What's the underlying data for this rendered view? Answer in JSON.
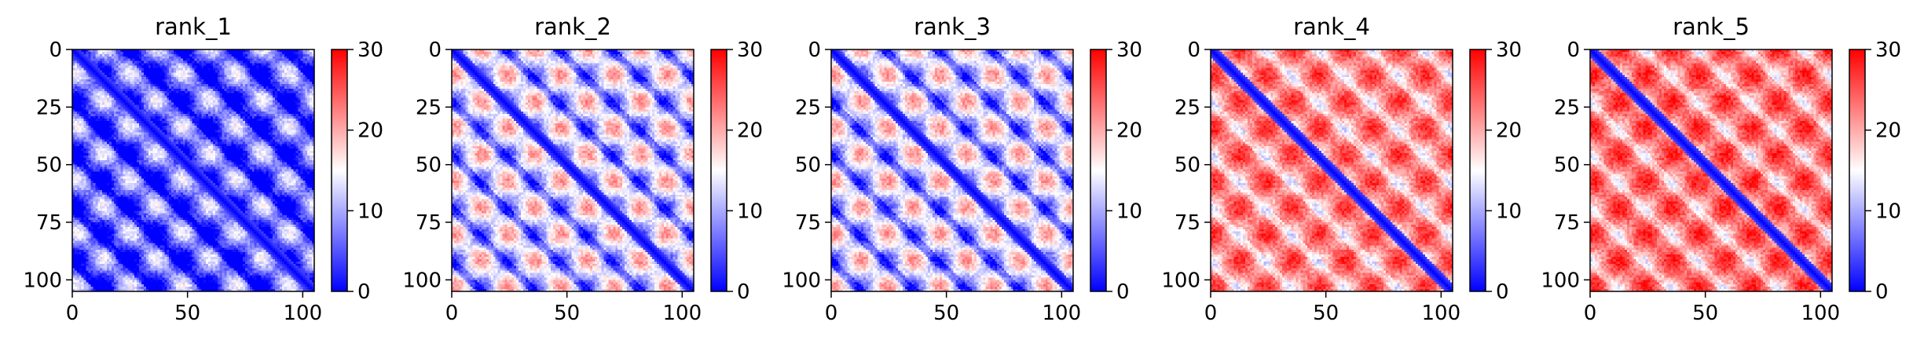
{
  "figure": {
    "type": "distance-matrix heatmap grid"
  },
  "colors": {
    "low": "#0000ff",
    "mid": "#ffffff",
    "high": "#ff0000",
    "axis": "#000000"
  },
  "chart_data": [
    {
      "type": "heatmap",
      "title": "rank_1",
      "n": 105,
      "xticks": [
        0,
        50,
        100
      ],
      "yticks": [
        0,
        25,
        50,
        75,
        100
      ],
      "xlim": [
        0,
        105
      ],
      "ylim": [
        105,
        0
      ],
      "colorbar": {
        "min": 0,
        "max": 30,
        "ticks": [
          0,
          10,
          20,
          30
        ],
        "colormap": "bwr"
      },
      "pattern": {
        "base": 6,
        "grid_amp": 9,
        "grid_period": 23,
        "stripe_amp": 10,
        "noise": 2.5
      }
    },
    {
      "type": "heatmap",
      "title": "rank_2",
      "n": 105,
      "xticks": [
        0,
        50,
        100
      ],
      "yticks": [
        0,
        25,
        50,
        75,
        100
      ],
      "xlim": [
        0,
        105
      ],
      "ylim": [
        105,
        0
      ],
      "colorbar": {
        "min": 0,
        "max": 30,
        "ticks": [
          0,
          10,
          20,
          30
        ],
        "colormap": "bwr"
      },
      "pattern": {
        "base": 13,
        "grid_amp": 10,
        "grid_period": 23,
        "stripe_amp": 6,
        "noise": 2.5
      }
    },
    {
      "type": "heatmap",
      "title": "rank_3",
      "n": 105,
      "xticks": [
        0,
        50,
        100
      ],
      "yticks": [
        0,
        25,
        50,
        75,
        100
      ],
      "xlim": [
        0,
        105
      ],
      "ylim": [
        105,
        0
      ],
      "colorbar": {
        "min": 0,
        "max": 30,
        "ticks": [
          0,
          10,
          20,
          30
        ],
        "colormap": "bwr"
      },
      "pattern": {
        "base": 13,
        "grid_amp": 10,
        "grid_period": 23,
        "stripe_amp": 6,
        "noise": 2.5
      }
    },
    {
      "type": "heatmap",
      "title": "rank_4",
      "n": 105,
      "xticks": [
        0,
        50,
        100
      ],
      "yticks": [
        0,
        25,
        50,
        75,
        100
      ],
      "xlim": [
        0,
        105
      ],
      "ylim": [
        105,
        0
      ],
      "colorbar": {
        "min": 0,
        "max": 30,
        "ticks": [
          0,
          10,
          20,
          30
        ],
        "colormap": "bwr"
      },
      "pattern": {
        "base": 22,
        "grid_amp": 7,
        "grid_period": 23,
        "stripe_amp": 3,
        "noise": 2.5
      }
    },
    {
      "type": "heatmap",
      "title": "rank_5",
      "n": 105,
      "xticks": [
        0,
        50,
        100
      ],
      "yticks": [
        0,
        25,
        50,
        75,
        100
      ],
      "xlim": [
        0,
        105
      ],
      "ylim": [
        105,
        0
      ],
      "colorbar": {
        "min": 0,
        "max": 30,
        "ticks": [
          0,
          10,
          20,
          30
        ],
        "colormap": "bwr"
      },
      "pattern": {
        "base": 23,
        "grid_amp": 7,
        "grid_period": 23,
        "stripe_amp": 3,
        "noise": 2.5
      }
    }
  ]
}
